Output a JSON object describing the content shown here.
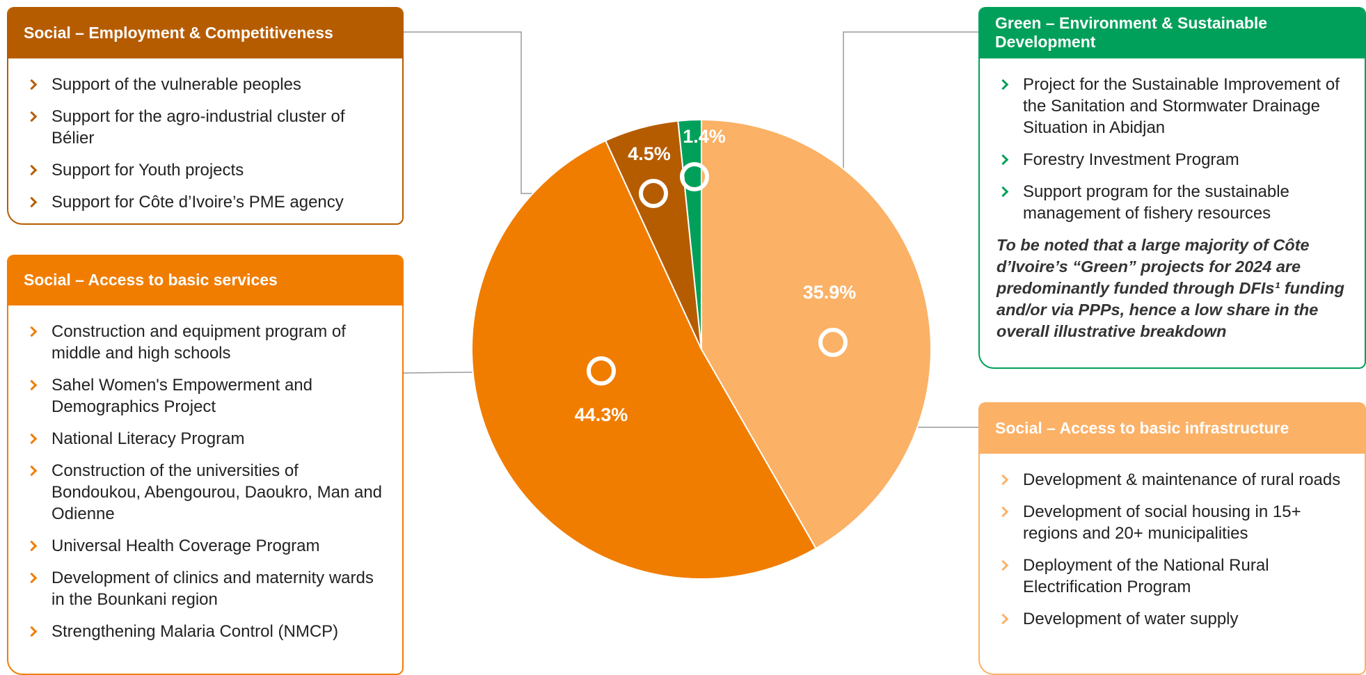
{
  "chart_data": {
    "type": "pie",
    "categories": [
      "Social – Access to basic infrastructure",
      "Social – Access to basic services",
      "Social – Employment & Competitiveness",
      "Green – Environment & Sustainable Development"
    ],
    "values": [
      35.9,
      44.3,
      4.5,
      1.4
    ],
    "value_labels": [
      "35.9%",
      "44.3%",
      "4.5%",
      "1.4%"
    ],
    "colors": [
      "#fbb166",
      "#f07d00",
      "#b65c00",
      "#00a05a"
    ]
  },
  "panels": [
    {
      "items": [
        "Development & maintenance of rural roads",
        "Development of social housing in 15+ regions and 20+ municipalities",
        "Deployment of the National Rural Electrification Program",
        "Development of water supply"
      ]
    },
    {
      "items": [
        "Construction and equipment program of middle and high schools",
        "Sahel Women's Empowerment and Demographics Project",
        "National Literacy Program",
        "Construction of the universities of Bondoukou, Abengourou, Daoukro, Man and Odienne",
        "Universal Health Coverage Program",
        "Development of clinics and maternity wards in the Bounkani region",
        "Strengthening Malaria Control (NMCP)"
      ]
    },
    {
      "items": [
        "Support of the vulnerable peoples",
        "Support for the agro-industrial cluster of Bélier",
        "Support for Youth projects",
        "Support for Côte d’Ivoire’s PME agency"
      ]
    },
    {
      "items": [
        "Project for the Sustainable Improvement of the Sanitation and Stormwater Drainage Situation in Abidjan",
        "Forestry Investment Program",
        "Support program for the sustainable management of fishery resources"
      ],
      "note": "To be noted that a large majority of Côte d’Ivoire’s “Green” projects for 2024 are predominantly funded through DFIs¹ funding and/or via PPPs, hence a low share in the overall illustrative breakdown"
    }
  ]
}
